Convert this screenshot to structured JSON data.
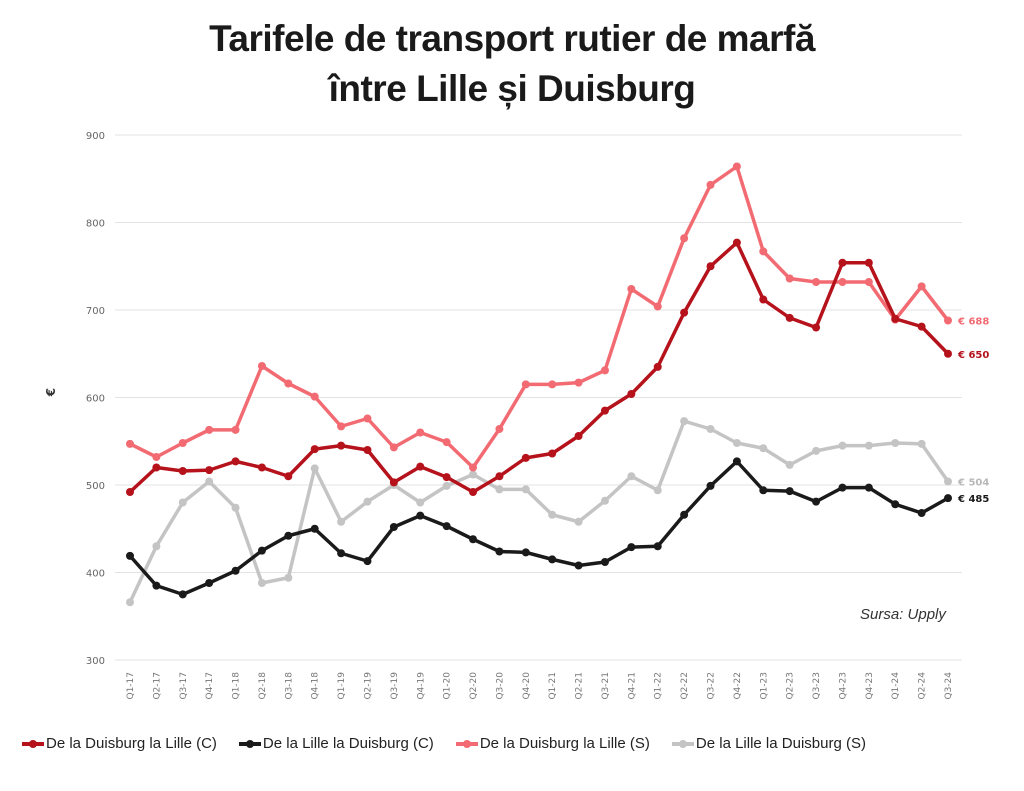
{
  "title_line1": "Tarifele de transport rutier de marfă",
  "title_line2": "între Lille și Duisburg",
  "source": "Sursa: Upply",
  "chart_data": {
    "type": "line",
    "title": "Tarifele de transport rutier de marfă între Lille și Duisburg",
    "xlabel": "",
    "ylabel": "€",
    "ylim": [
      300,
      900
    ],
    "yticks": [
      300,
      400,
      500,
      600,
      700,
      800,
      900
    ],
    "grid": true,
    "legend_position": "bottom",
    "categories": [
      "Q1-17",
      "Q2-17",
      "Q3-17",
      "Q4-17",
      "Q1-18",
      "Q2-18",
      "Q3-18",
      "Q4-18",
      "Q1-19",
      "Q2-19",
      "Q3-19",
      "Q4-19",
      "Q1-20",
      "Q2-20",
      "Q3-20",
      "Q4-20",
      "Q1-21",
      "Q2-21",
      "Q3-21",
      "Q4-21",
      "Q1-22",
      "Q2-22",
      "Q3-22",
      "Q4-22",
      "Q1-23",
      "Q2-23",
      "Q3-23",
      "Q4-23",
      "Q4-23",
      "Q1-24",
      "Q2-24",
      "Q3-24"
    ],
    "series": [
      {
        "name": "De la Duisburg la Lille (C)",
        "color": "#b5121b",
        "end_label": "€ 650",
        "values": [
          492,
          520,
          516,
          517,
          527,
          520,
          510,
          541,
          545,
          540,
          503,
          521,
          509,
          492,
          510,
          531,
          536,
          556,
          585,
          604,
          635,
          697,
          750,
          777,
          712,
          691,
          680,
          754,
          754,
          690,
          681,
          650
        ]
      },
      {
        "name": "De la Lille la Duisburg (C)",
        "color": "#1a1a1a",
        "end_label": "€ 485",
        "values": [
          419,
          385,
          375,
          388,
          402,
          425,
          442,
          450,
          422,
          413,
          452,
          465,
          453,
          438,
          424,
          423,
          415,
          408,
          412,
          429,
          430,
          466,
          499,
          527,
          494,
          493,
          481,
          497,
          497,
          478,
          468,
          485
        ]
      },
      {
        "name": "De la Duisburg la Lille (S)",
        "color": "#f26b72",
        "end_label": "€ 688",
        "values": [
          547,
          532,
          548,
          563,
          563,
          636,
          616,
          601,
          567,
          576,
          543,
          560,
          549,
          520,
          564,
          615,
          615,
          617,
          631,
          724,
          704,
          782,
          843,
          864,
          767,
          736,
          732,
          732,
          732,
          689,
          727,
          688
        ]
      },
      {
        "name": "De la Lille la Duisburg (S)",
        "color": "#c4c4c4",
        "end_label": "€ 504",
        "values": [
          366,
          430,
          480,
          504,
          474,
          388,
          394,
          519,
          458,
          481,
          500,
          480,
          499,
          512,
          495,
          495,
          466,
          458,
          482,
          510,
          494,
          573,
          564,
          548,
          542,
          523,
          539,
          545,
          545,
          548,
          547,
          504
        ]
      }
    ]
  }
}
